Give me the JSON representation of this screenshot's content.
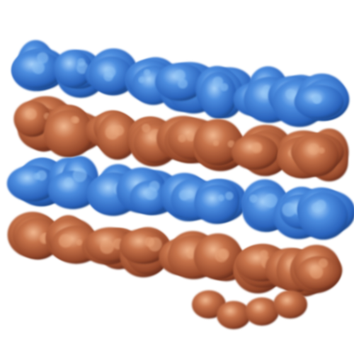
{
  "image": {
    "subject": "molecular-surface-rendering",
    "background_color": "#ffffff",
    "colors": {
      "blue_light": "#8fc3f5",
      "blue_mid": "#3f7fd6",
      "blue_dark": "#1e4f9e",
      "brown_light": "#e8a57a",
      "brown_mid": "#b8653a",
      "brown_dark": "#6e2f1c",
      "red_shadow": "#8a2a25"
    },
    "rows": [
      {
        "color_role": "blue",
        "band": "top"
      },
      {
        "color_role": "brown",
        "band": "upper-middle"
      },
      {
        "color_role": "blue",
        "band": "lower-middle"
      },
      {
        "color_role": "brown",
        "band": "bottom"
      }
    ]
  }
}
